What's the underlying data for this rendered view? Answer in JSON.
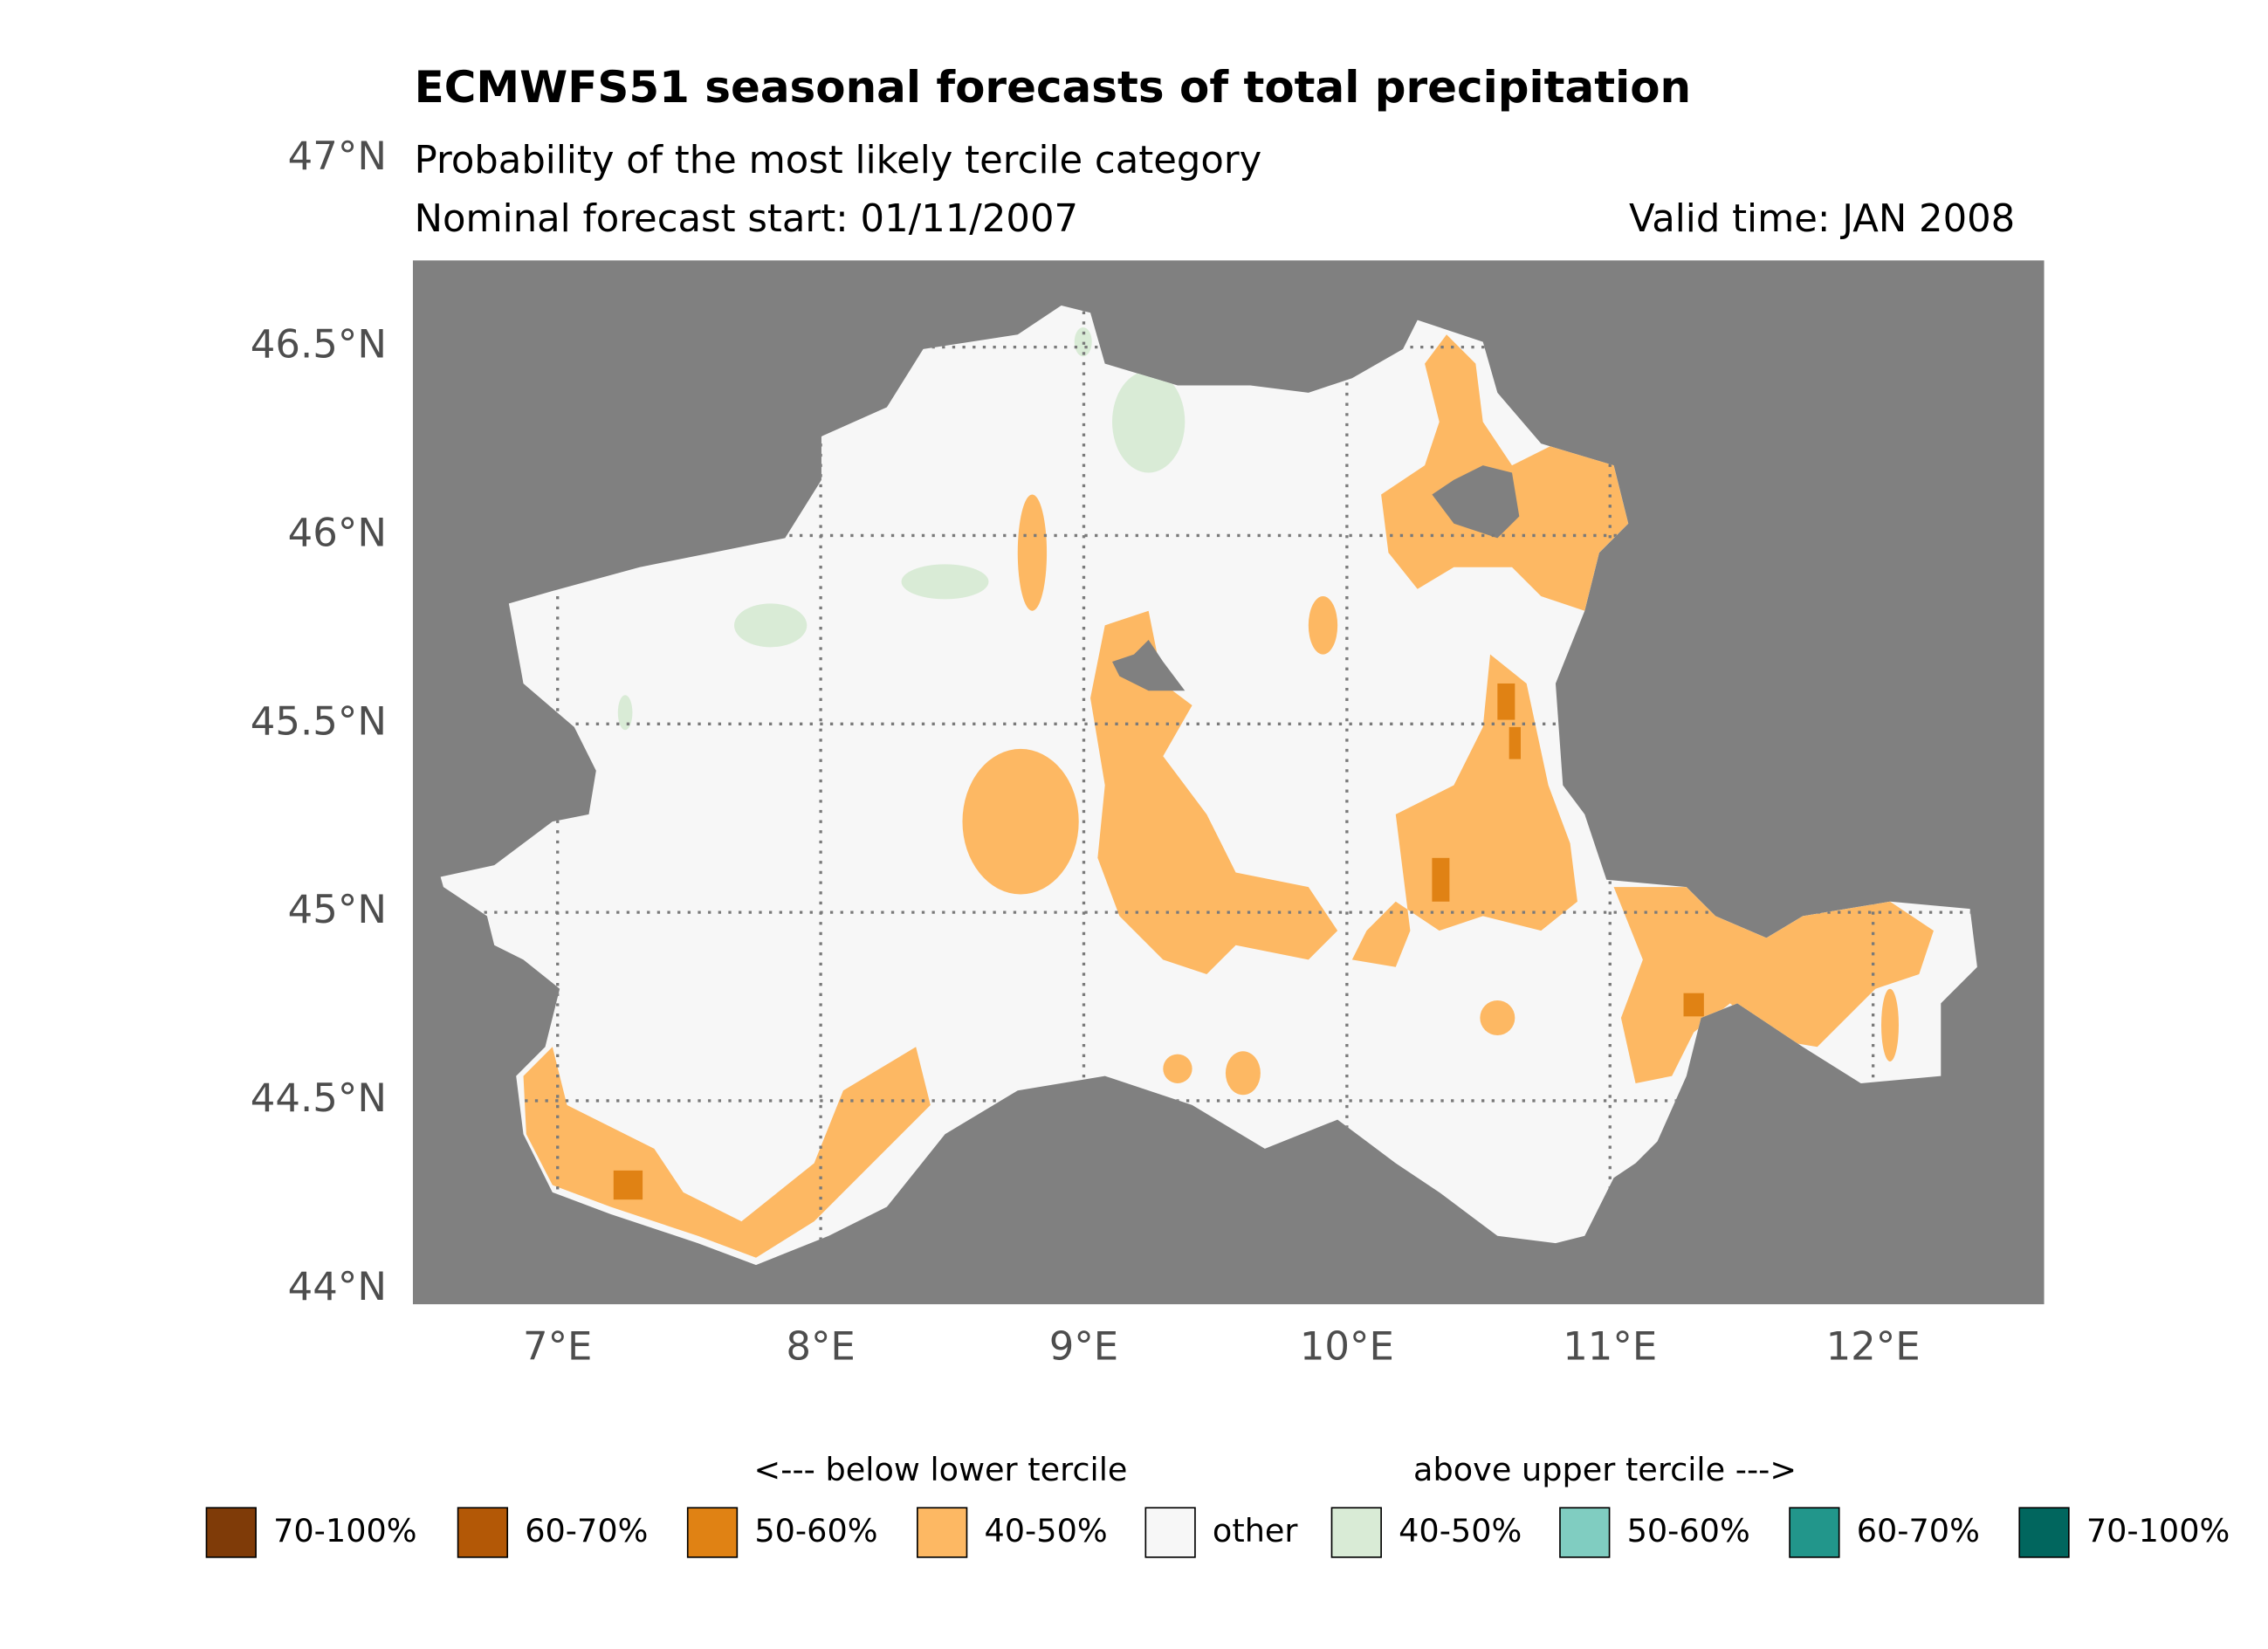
{
  "chart_data": {
    "type": "map",
    "title": "ECMWFS51 seasonal forecasts of total precipitation",
    "subtitle": "Probability of the most likely tercile category",
    "forecast_start": "Nominal forecast start: 01/11/2007",
    "valid_time": "Valid time: JAN 2008",
    "xlim": [
      6.45,
      12.65
    ],
    "ylim": [
      43.96,
      46.73
    ],
    "xticks": [
      {
        "value": 7,
        "label": "7°E"
      },
      {
        "value": 8,
        "label": "8°E"
      },
      {
        "value": 9,
        "label": "9°E"
      },
      {
        "value": 10,
        "label": "10°E"
      },
      {
        "value": 11,
        "label": "11°E"
      },
      {
        "value": 12,
        "label": "12°E"
      }
    ],
    "yticks": [
      {
        "value": 44,
        "label": "44°N"
      },
      {
        "value": 44.5,
        "label": "44.5°N"
      },
      {
        "value": 45,
        "label": "45°N"
      },
      {
        "value": 45.5,
        "label": "45.5°N"
      },
      {
        "value": 46,
        "label": "46°N"
      },
      {
        "value": 46.5,
        "label": "46.5°N"
      },
      {
        "value": 47,
        "label": "47°N"
      }
    ],
    "grid": true,
    "legend": {
      "below_label": "<--- below lower tercile",
      "above_label": "above upper tercile --->",
      "entries": [
        {
          "name": "70-100%",
          "color": "#7f3b08"
        },
        {
          "name": "60-70%",
          "color": "#b35806"
        },
        {
          "name": "50-60%",
          "color": "#e08214"
        },
        {
          "name": "40-50%",
          "color": "#fdb863"
        },
        {
          "name": "other",
          "color": "#f7f7f7"
        },
        {
          "name": "40-50%",
          "color": "#d9ebd6"
        },
        {
          "name": "50-60%",
          "color": "#80cdc1"
        },
        {
          "name": "60-70%",
          "color": "#22968b"
        },
        {
          "name": "70-100%",
          "color": "#01665e"
        }
      ]
    }
  }
}
